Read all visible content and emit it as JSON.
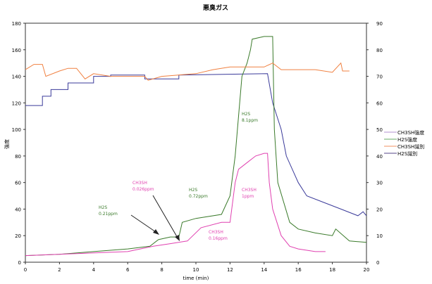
{
  "chart_data": {
    "type": "line",
    "title": "悪臭ガス",
    "xlabel": "time (min)",
    "ylabel": "強度",
    "xlim": [
      0,
      20
    ],
    "ylim": [
      0,
      180
    ],
    "y2lim": [
      0,
      90
    ],
    "xticks": [
      "0",
      "2",
      "4",
      "6",
      "8",
      "10",
      "12",
      "14",
      "16",
      "18",
      "20"
    ],
    "yticks": [
      "0",
      "20",
      "40",
      "60",
      "80",
      "100",
      "120",
      "140",
      "160",
      "180"
    ],
    "y2ticks": [
      "0",
      "10",
      "20",
      "30",
      "40",
      "50",
      "60",
      "70",
      "80",
      "90"
    ],
    "legend_position": "right",
    "series": [
      {
        "name": "CH3SH強度",
        "color": "#3a3a9a",
        "legend_color": "#b090d0",
        "x": [
          0,
          1,
          1,
          1.5,
          1.5,
          2.5,
          2.5,
          4,
          4,
          5,
          5,
          7,
          7,
          9,
          9,
          14.2,
          14.5,
          15,
          15.3,
          16,
          16.5,
          17.5,
          18.5,
          19.5,
          19.8,
          20
        ],
        "y": [
          118,
          118,
          125,
          125,
          130,
          130,
          135,
          135,
          140,
          140,
          141,
          141,
          138,
          138,
          141,
          142,
          120,
          100,
          80,
          60,
          50,
          45,
          40,
          35,
          38,
          35
        ]
      },
      {
        "name": "H2S強度",
        "color": "#3a7a2a",
        "legend_color": "#66aa66",
        "x": [
          0,
          2,
          4,
          6,
          7.3,
          7.8,
          8.5,
          9,
          9.2,
          10,
          11.5,
          12,
          12.3,
          12.5,
          12.7,
          13,
          13.2,
          13.3,
          14,
          14.5,
          14.6,
          14.8,
          15.5,
          16,
          17,
          18,
          18.2,
          19,
          20
        ],
        "y": [
          5,
          6,
          8,
          10,
          12,
          17,
          19,
          19,
          30,
          33,
          36,
          50,
          80,
          110,
          140,
          150,
          160,
          168,
          170,
          170,
          100,
          60,
          30,
          25,
          22,
          20,
          25,
          16,
          15
        ]
      },
      {
        "name": "CH3SH識別",
        "color": "#f08040",
        "legend_color": "#f09060",
        "x": [
          0,
          0.5,
          1,
          1.2,
          2,
          2.5,
          3,
          3.5,
          4,
          5,
          7,
          7.2,
          8,
          10,
          11,
          12,
          14,
          14.5,
          15,
          17,
          18,
          18.5,
          18.6,
          19
        ],
        "y": [
          145,
          149,
          149,
          140,
          144,
          146,
          146,
          138,
          142,
          140,
          140,
          137,
          140,
          142,
          145,
          147,
          147,
          150,
          145,
          145,
          143,
          150,
          144,
          144
        ]
      },
      {
        "name": "H2S識別",
        "color": "#e040b0",
        "legend_color": "#554488",
        "x": [
          0,
          6,
          7.5,
          8.5,
          9.5,
          10.3,
          11.5,
          12,
          12.3,
          12.5,
          13,
          13.5,
          14,
          14.2,
          14.3,
          14.5,
          15,
          15.5,
          16,
          17,
          17.6
        ],
        "y": [
          5,
          8,
          12,
          14,
          16,
          26,
          30,
          30,
          60,
          70,
          75,
          80,
          82,
          82,
          60,
          40,
          20,
          12,
          10,
          8,
          8
        ]
      }
    ],
    "annotations": [
      {
        "line1": "H2S",
        "line2": "0.21ppm",
        "color": "#3a7a2a"
      },
      {
        "line1": "CH3SH",
        "line2": "0.026ppm",
        "color": "#e040b0"
      },
      {
        "line1": "H2S",
        "line2": "0.72ppm",
        "color": "#3a7a2a"
      },
      {
        "line1": "CH3SH",
        "line2": "0.16ppm",
        "color": "#e040b0"
      },
      {
        "line1": "CH3SH",
        "line2": "1ppm",
        "color": "#e040b0"
      },
      {
        "line1": "H2S",
        "line2": "8.1ppm",
        "color": "#3a7a2a"
      }
    ]
  }
}
